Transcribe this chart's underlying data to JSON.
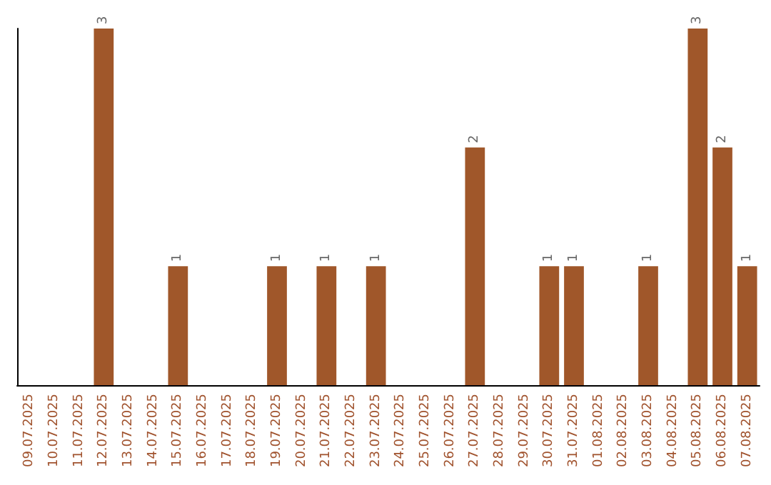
{
  "chart_data": {
    "type": "bar",
    "categories": [
      "09.07.2025",
      "10.07.2025",
      "11.07.2025",
      "12.07.2025",
      "13.07.2025",
      "14.07.2025",
      "15.07.2025",
      "16.07.2025",
      "17.07.2025",
      "18.07.2025",
      "19.07.2025",
      "20.07.2025",
      "21.07.2025",
      "22.07.2025",
      "23.07.2025",
      "24.07.2025",
      "25.07.2025",
      "26.07.2025",
      "27.07.2025",
      "28.07.2025",
      "29.07.2025",
      "30.07.2025",
      "31.07.2025",
      "01.08.2025",
      "02.08.2025",
      "03.08.2025",
      "04.08.2025",
      "05.08.2025",
      "06.08.2025",
      "07.08.2025"
    ],
    "values": [
      0,
      0,
      0,
      3,
      0,
      0,
      1,
      0,
      0,
      0,
      1,
      0,
      1,
      0,
      1,
      0,
      0,
      0,
      2,
      0,
      0,
      1,
      1,
      0,
      0,
      1,
      0,
      3,
      2,
      1
    ],
    "value_labels": [
      null,
      null,
      null,
      "3",
      null,
      null,
      "1",
      null,
      null,
      null,
      "1",
      null,
      "1",
      null,
      "1",
      null,
      null,
      null,
      "2",
      null,
      null,
      "1",
      "1",
      null,
      null,
      "1",
      null,
      "3",
      "2",
      "1"
    ],
    "color": "#a0572a",
    "grid": false
  }
}
